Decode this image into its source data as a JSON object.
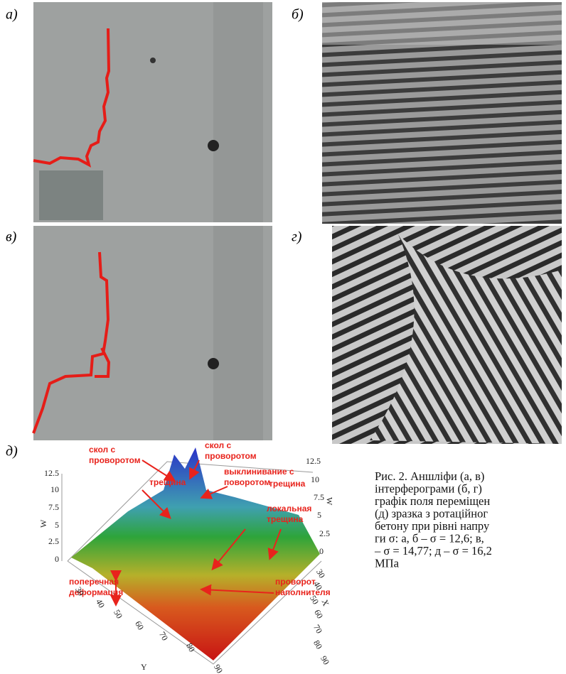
{
  "panels": {
    "a": "а)",
    "b": "б)",
    "v": "в)",
    "g": "г)",
    "d": "д)"
  },
  "plot": {
    "annotations": [
      {
        "lines": [
          "скол с",
          "проворотом"
        ]
      },
      {
        "lines": [
          "скол с",
          "проворотом"
        ]
      },
      {
        "lines": [
          "выклинивание с",
          "поворотом"
        ]
      },
      {
        "lines": [
          "трещина"
        ]
      },
      {
        "lines": [
          "трещина"
        ]
      },
      {
        "lines": [
          "локальная",
          "трещина"
        ]
      },
      {
        "lines": [
          "поперечная",
          "деформация"
        ]
      },
      {
        "lines": [
          "проворот",
          "наполнителя"
        ]
      }
    ],
    "w_left_ticks": [
      "12.5",
      "10",
      "7.5",
      "5",
      "2.5",
      "0"
    ],
    "w_right_ticks": [
      "12.5",
      "10",
      "7.5",
      "5",
      "2.5",
      "0"
    ],
    "x_ticks": [
      "30",
      "40",
      "50",
      "60",
      "70",
      "80",
      "90"
    ],
    "y_ticks": [
      "30",
      "40",
      "50",
      "60",
      "70",
      "80",
      "90"
    ],
    "w_left_label": "W",
    "w_right_label": "W",
    "x_label": "X",
    "y_label": "Y"
  },
  "caption": [
    "Рис. 2. Аншліфи (а, в)",
    "інтерферограми (б, г)",
    "графік поля переміщен",
    "(д) зразка з ротаційног",
    "бетону при рівні напру",
    "ги σ: а, б – σ = 12,6; в,",
    "– σ = 14,77; д – σ = 16,2",
    "МПа"
  ]
}
